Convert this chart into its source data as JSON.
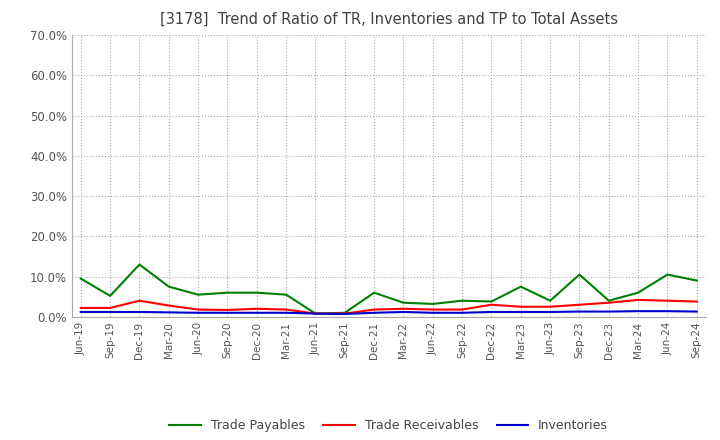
{
  "title": "[3178]  Trend of Ratio of TR, Inventories and TP to Total Assets",
  "ylim": [
    0.0,
    0.7
  ],
  "yticks": [
    0.0,
    0.1,
    0.2,
    0.3,
    0.4,
    0.5,
    0.6,
    0.7
  ],
  "ytick_labels": [
    "0.0%",
    "10.0%",
    "20.0%",
    "30.0%",
    "40.0%",
    "50.0%",
    "60.0%",
    "70.0%"
  ],
  "x_labels": [
    "Jun-19",
    "Sep-19",
    "Dec-19",
    "Mar-20",
    "Jun-20",
    "Sep-20",
    "Dec-20",
    "Mar-21",
    "Jun-21",
    "Sep-21",
    "Dec-21",
    "Mar-22",
    "Jun-22",
    "Sep-22",
    "Dec-22",
    "Mar-23",
    "Jun-23",
    "Sep-23",
    "Dec-23",
    "Mar-24",
    "Jun-24",
    "Sep-24"
  ],
  "trade_receivables": [
    0.022,
    0.022,
    0.04,
    0.028,
    0.018,
    0.017,
    0.02,
    0.018,
    0.008,
    0.008,
    0.018,
    0.02,
    0.018,
    0.018,
    0.03,
    0.025,
    0.025,
    0.03,
    0.035,
    0.042,
    0.04,
    0.038
  ],
  "inventories": [
    0.012,
    0.012,
    0.012,
    0.011,
    0.01,
    0.01,
    0.01,
    0.01,
    0.008,
    0.007,
    0.01,
    0.012,
    0.01,
    0.01,
    0.012,
    0.012,
    0.012,
    0.013,
    0.013,
    0.014,
    0.014,
    0.013
  ],
  "trade_payables": [
    0.095,
    0.052,
    0.13,
    0.075,
    0.055,
    0.06,
    0.06,
    0.055,
    0.008,
    0.01,
    0.06,
    0.035,
    0.032,
    0.04,
    0.038,
    0.075,
    0.04,
    0.105,
    0.04,
    0.06,
    0.105,
    0.09
  ],
  "tr_color": "#ff0000",
  "inv_color": "#0000cc",
  "tp_color": "#008000",
  "background_color": "#ffffff",
  "grid_color": "#aaaaaa",
  "title_color": "#404040",
  "legend_labels": [
    "Trade Receivables",
    "Inventories",
    "Trade Payables"
  ]
}
